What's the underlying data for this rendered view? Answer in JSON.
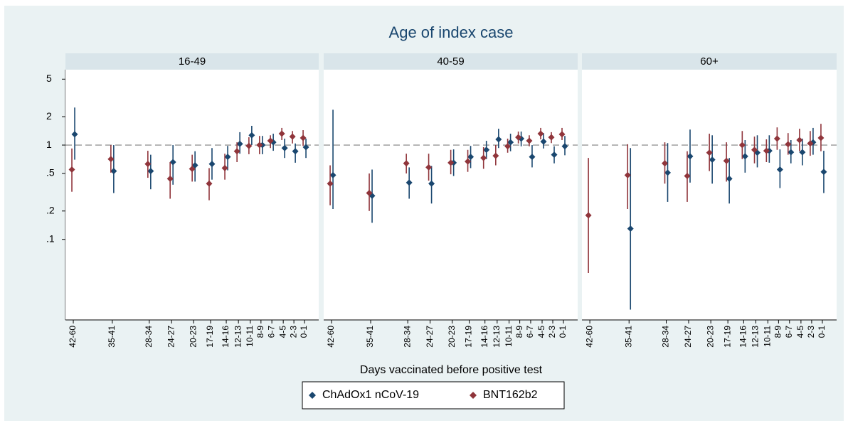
{
  "chart_data": {
    "type": "scatter",
    "title": "Age of index case",
    "x_label": "Days vaccinated before positive test",
    "categories": [
      "42-60",
      "35-41",
      "28-34",
      "24-27",
      "20-23",
      "17-19",
      "14-16",
      "12-13",
      "10-11",
      "8-9",
      "6-7",
      "4-5",
      "2-3",
      "0-1"
    ],
    "series": [
      {
        "name": "ChAdOx1 nCoV-19",
        "color": "#1a476f"
      },
      {
        "name": "BNT162b2",
        "color": "#90353b"
      }
    ],
    "panels": [
      {
        "title": "16-49",
        "series": [
          {
            "values": [
              1.3,
              0.53,
              0.53,
              0.66,
              0.61,
              0.63,
              0.75,
              1.03,
              1.27,
              1.0,
              1.07,
              0.93,
              0.86,
              0.95
            ],
            "lower": [
              0.7,
              0.31,
              0.34,
              0.38,
              0.41,
              0.43,
              0.54,
              0.81,
              1.0,
              0.8,
              0.87,
              0.73,
              0.65,
              0.73
            ],
            "upper": [
              2.5,
              1.0,
              0.79,
              1.0,
              0.86,
              0.93,
              0.98,
              1.37,
              1.6,
              1.25,
              1.32,
              1.17,
              1.04,
              1.17
            ]
          },
          {
            "values": [
              0.55,
              0.71,
              0.63,
              0.44,
              0.56,
              0.39,
              0.57,
              0.86,
              0.98,
              1.0,
              1.11,
              1.32,
              1.23,
              1.19
            ],
            "lower": [
              0.32,
              0.51,
              0.45,
              0.27,
              0.41,
              0.26,
              0.43,
              0.66,
              0.8,
              0.8,
              0.93,
              1.13,
              1.04,
              0.98
            ],
            "upper": [
              0.92,
              1.0,
              0.87,
              0.66,
              0.79,
              0.57,
              0.81,
              1.07,
              1.21,
              1.25,
              1.27,
              1.52,
              1.41,
              1.44
            ]
          }
        ]
      },
      {
        "title": "40-59",
        "series": [
          {
            "values": [
              0.48,
              0.29,
              0.4,
              0.39,
              0.65,
              0.75,
              0.89,
              1.15,
              1.07,
              1.17,
              0.75,
              1.09,
              0.79,
              0.97
            ],
            "lower": [
              0.21,
              0.15,
              0.27,
              0.24,
              0.47,
              0.57,
              0.71,
              0.93,
              0.86,
              0.97,
              0.58,
              0.92,
              0.64,
              0.78
            ],
            "upper": [
              2.37,
              0.55,
              0.58,
              0.6,
              0.9,
              0.98,
              1.11,
              1.49,
              1.32,
              1.39,
              1.0,
              1.34,
              0.97,
              1.25
            ]
          },
          {
            "values": [
              0.39,
              0.31,
              0.64,
              0.58,
              0.65,
              0.67,
              0.73,
              0.77,
              0.97,
              1.21,
              1.11,
              1.32,
              1.21,
              1.3
            ],
            "lower": [
              0.23,
              0.2,
              0.5,
              0.42,
              0.49,
              0.52,
              0.56,
              0.61,
              0.83,
              1.04,
              0.97,
              1.15,
              1.05,
              1.13
            ],
            "upper": [
              0.61,
              0.5,
              0.81,
              0.81,
              0.89,
              0.89,
              0.95,
              1.0,
              1.17,
              1.39,
              1.27,
              1.52,
              1.37,
              1.52
            ]
          }
        ]
      },
      {
        "title": "60+",
        "series": [
          {
            "values": [
              null,
              0.13,
              0.51,
              0.76,
              0.7,
              0.44,
              0.76,
              0.83,
              0.87,
              0.55,
              0.84,
              0.84,
              1.07,
              0.52
            ],
            "lower": [
              null,
              0.018,
              0.25,
              0.4,
              0.39,
              0.24,
              0.51,
              0.58,
              0.65,
              0.35,
              0.64,
              0.61,
              0.79,
              0.31
            ],
            "upper": [
              null,
              0.93,
              1.05,
              1.46,
              1.27,
              0.73,
              1.13,
              1.27,
              1.27,
              0.9,
              1.13,
              1.17,
              1.52,
              0.87
            ]
          },
          {
            "values": [
              0.18,
              0.48,
              0.64,
              0.47,
              0.83,
              0.68,
              1.0,
              0.89,
              0.87,
              1.17,
              1.02,
              1.13,
              1.04,
              1.19
            ],
            "lower": [
              0.044,
              0.21,
              0.39,
              0.25,
              0.53,
              0.41,
              0.71,
              0.64,
              0.66,
              0.89,
              0.79,
              0.86,
              0.77,
              0.86
            ],
            "upper": [
              0.73,
              1.02,
              1.07,
              0.86,
              1.32,
              1.07,
              1.41,
              1.23,
              1.15,
              1.54,
              1.34,
              1.49,
              1.41,
              1.68
            ]
          }
        ]
      }
    ],
    "ylim": [
      0.014,
      6.3
    ],
    "yticks": [
      {
        "value": 5,
        "label": "5"
      },
      {
        "value": 2,
        "label": "2"
      },
      {
        "value": 1,
        "label": "1"
      },
      {
        "value": 0.5,
        "label": ".5"
      },
      {
        "value": 0.2,
        "label": ".2"
      },
      {
        "value": 0.1,
        "label": ".1"
      }
    ],
    "log_y": true,
    "refline": 1,
    "legend": "bottom"
  }
}
